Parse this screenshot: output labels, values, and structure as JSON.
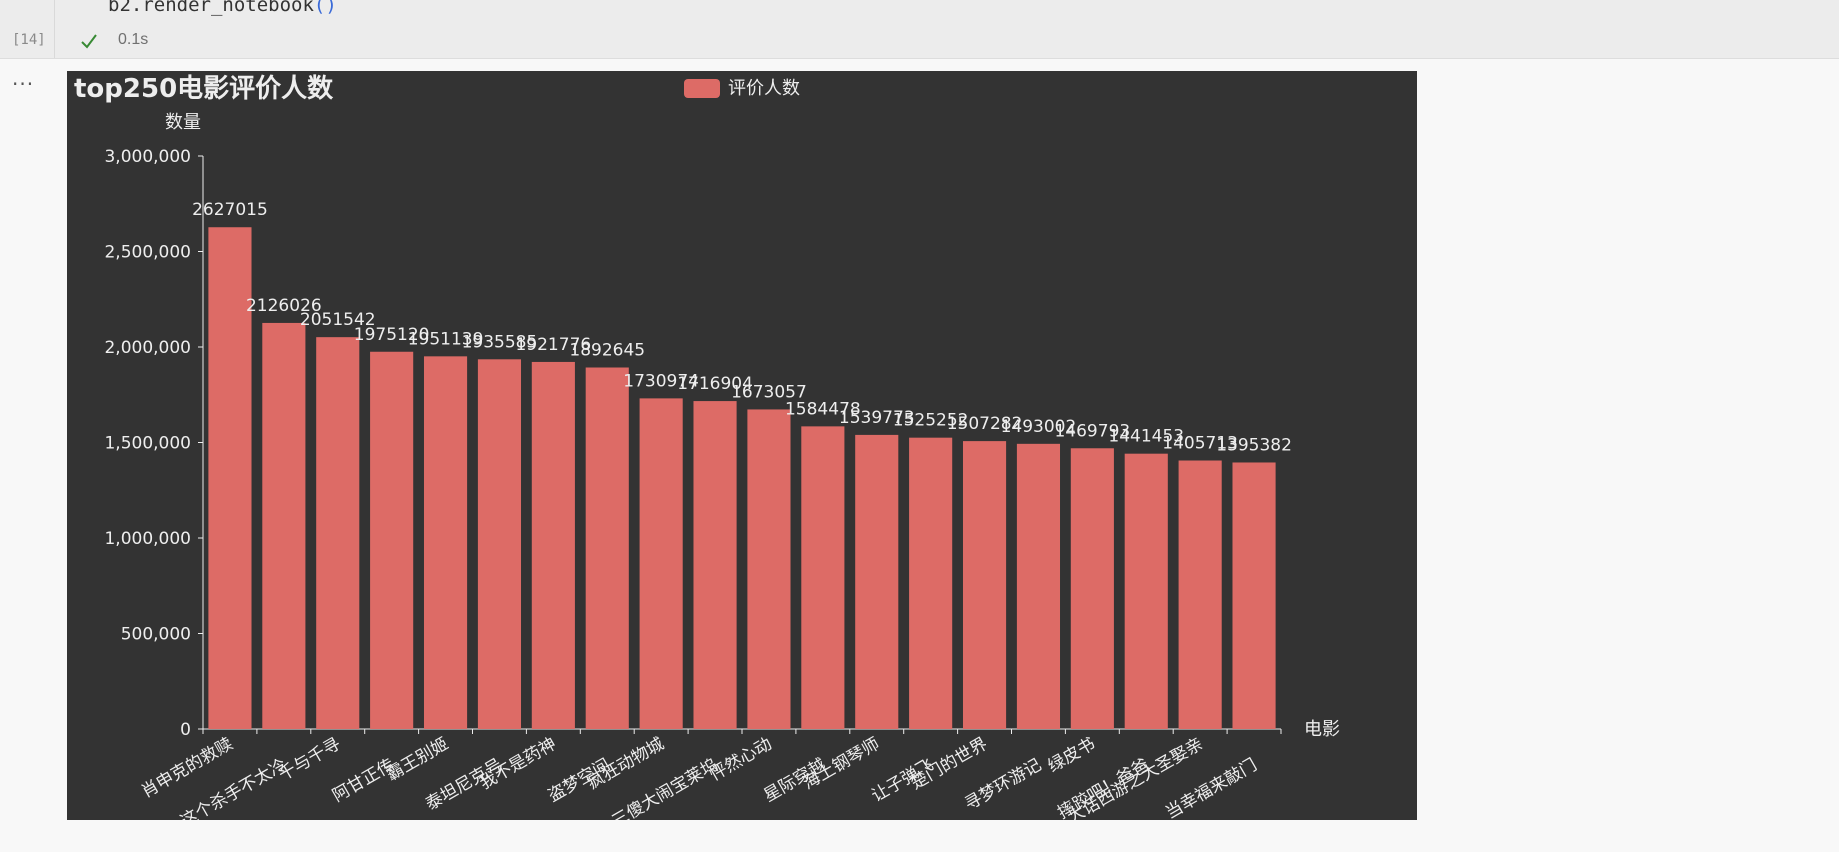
{
  "cell": {
    "code": "b2.render_notebook",
    "code_parens": "()",
    "execution_count": "[14]",
    "status_icon": "checkmark-icon",
    "exec_time": "0.1s"
  },
  "output": {
    "more_icon": "ellipsis-icon",
    "more_label": "···"
  },
  "colors": {
    "chart_background": "#333333",
    "bar": "#dd6b66",
    "text": "#eeeeee",
    "success": "#388a34"
  },
  "chart_data": {
    "type": "bar",
    "title": "top250电影评价人数",
    "legend": "评价人数",
    "legend_position": "top-center",
    "xlabel": "电影",
    "ylabel": "数量",
    "ylim": [
      0,
      3000000
    ],
    "yticks": [
      0,
      500000,
      1000000,
      1500000,
      2000000,
      2500000,
      3000000
    ],
    "ytick_labels": [
      "0",
      "500,000",
      "1,000,000",
      "1,500,000",
      "2,000,000",
      "2,500,000",
      "3,000,000"
    ],
    "grid": false,
    "categories": [
      "肖申克的救赎",
      "这个杀手不太冷",
      "千与千寻",
      "阿甘正传",
      "霸王别姬",
      "泰坦尼克号",
      "我不是药神",
      "盗梦空间",
      "疯狂动物城",
      "三傻大闹宝莱坞",
      "怦然心动",
      "星际穿越",
      "海上钢琴师",
      "让子弹飞",
      "楚门的世界",
      "寻梦环游记",
      "绿皮书",
      "摔跤吧！爸爸",
      "大话西游之大圣娶亲",
      "当幸福来敲门"
    ],
    "series": [
      {
        "name": "评价人数",
        "values": [
          2627015,
          2126026,
          2051542,
          1975120,
          1951139,
          1935585,
          1921776,
          1892645,
          1730974,
          1716904,
          1673057,
          1584478,
          1539773,
          1525252,
          1507282,
          1493002,
          1469793,
          1441453,
          1405713,
          1395382
        ]
      }
    ]
  }
}
